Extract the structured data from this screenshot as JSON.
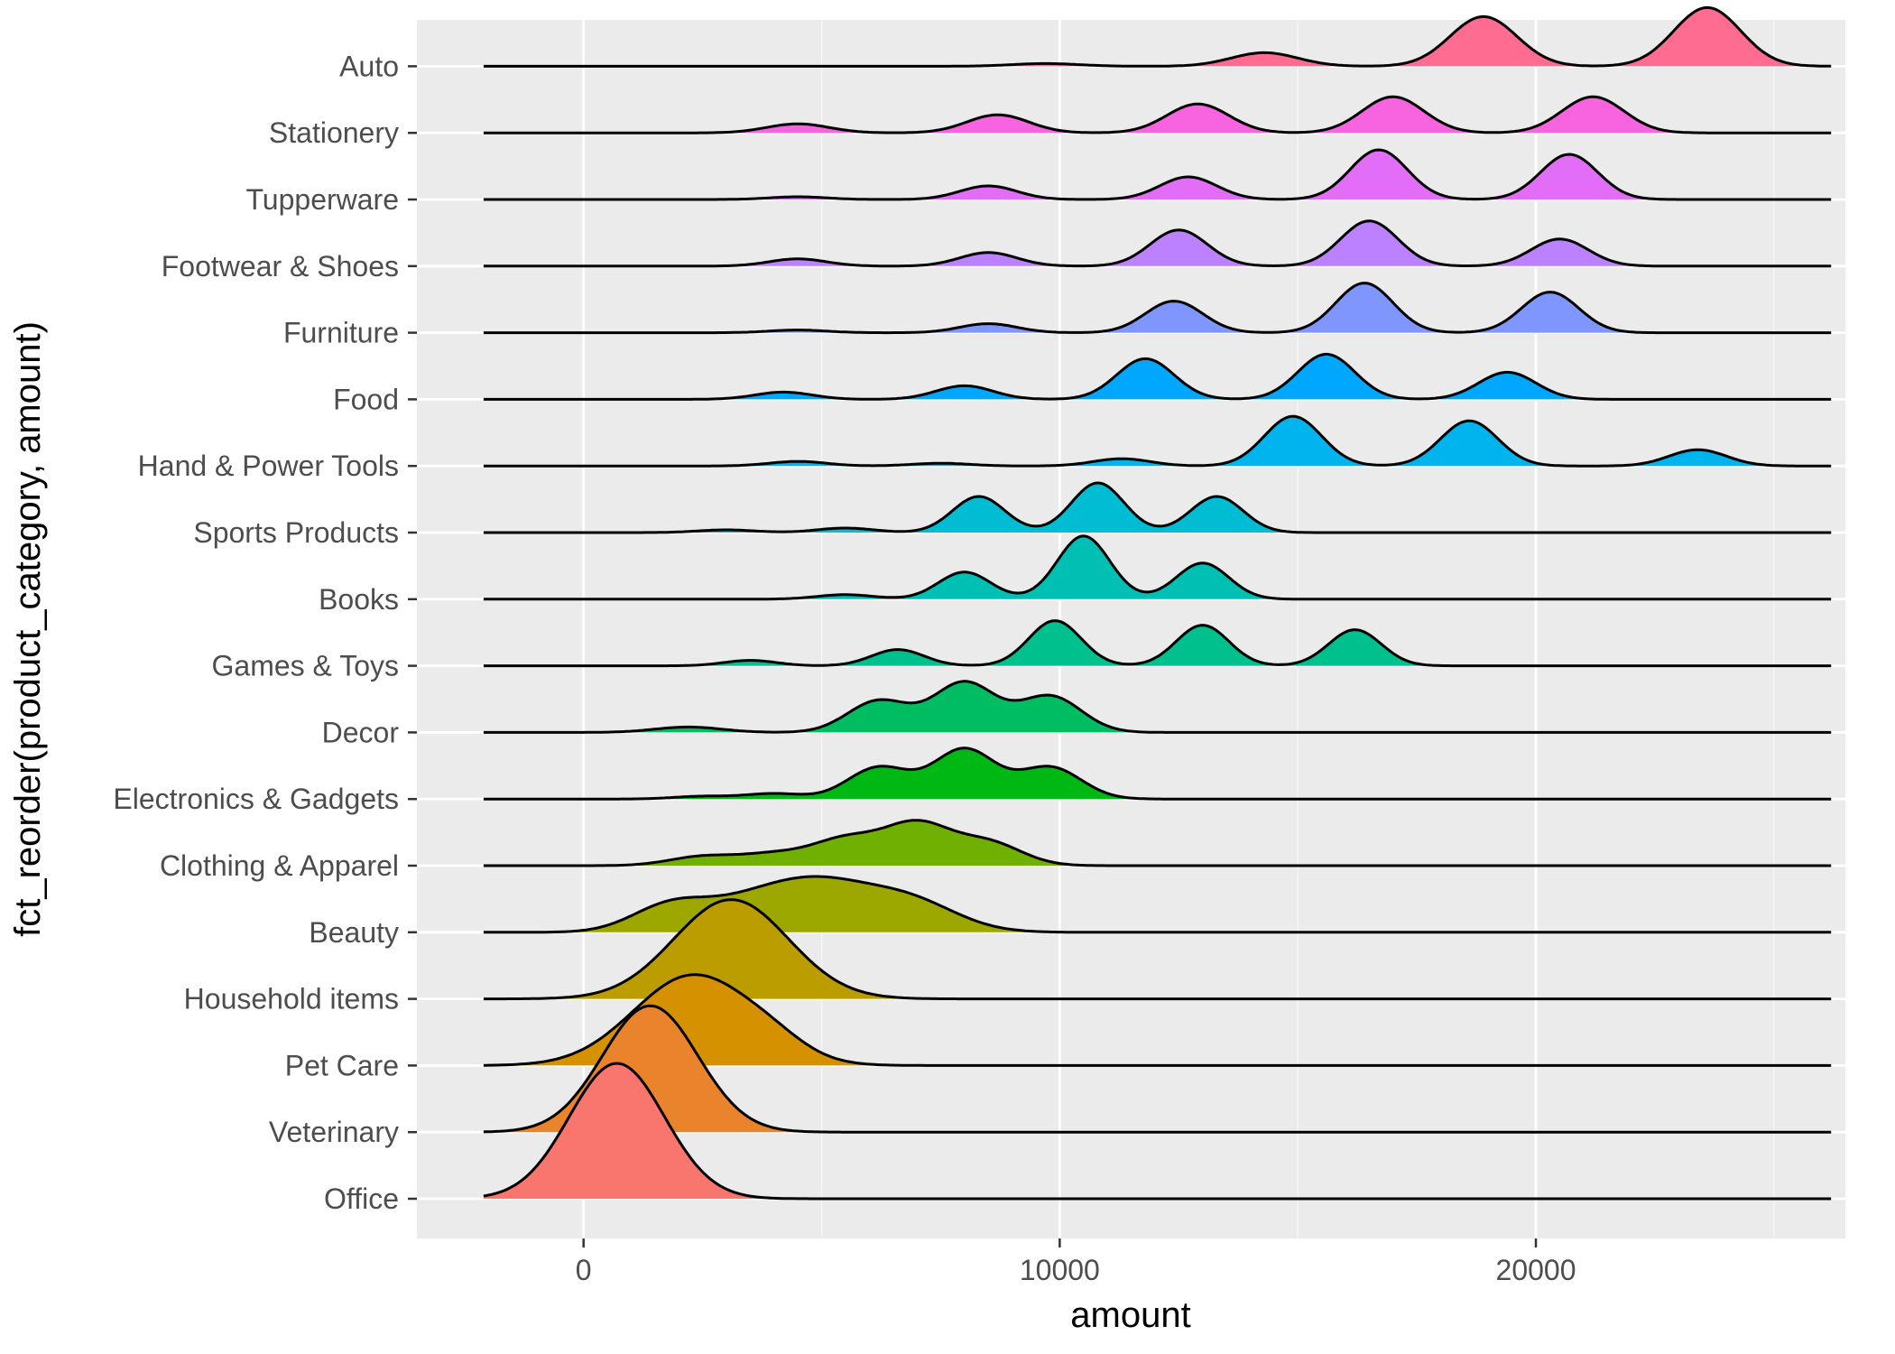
{
  "chart_data": {
    "type": "ridgeline",
    "xlabel": "amount",
    "ylabel": "fct_reorder(product_category, amount)",
    "xlim": [
      -3500,
      26500
    ],
    "x_ticks": [
      0,
      10000,
      20000
    ],
    "x_tick_labels": [
      "0",
      "10000",
      "20000"
    ],
    "density_range": [
      -2100,
      26200
    ],
    "grid": true,
    "legend": "none",
    "categories": [
      {
        "name": "Office",
        "color": "#F8766D",
        "peaks": [
          {
            "x": 700,
            "h": 1.5,
            "s": 1000
          }
        ]
      },
      {
        "name": "Veterinary",
        "color": "#E9842C",
        "peaks": [
          {
            "x": 1400,
            "h": 1.4,
            "s": 1000
          }
        ]
      },
      {
        "name": "Pet Care",
        "color": "#D69100",
        "peaks": [
          {
            "x": 2300,
            "h": 1.0,
            "s": 1250
          },
          {
            "x": 4000,
            "h": 0.12,
            "s": 700
          }
        ]
      },
      {
        "name": "Household items",
        "color": "#BC9D00",
        "peaks": [
          {
            "x": 3100,
            "h": 1.1,
            "s": 1200
          }
        ]
      },
      {
        "name": "Beauty",
        "color": "#9CA700",
        "peaks": [
          {
            "x": 1800,
            "h": 0.28,
            "s": 800
          },
          {
            "x": 3500,
            "h": 0.3,
            "s": 1000
          },
          {
            "x": 5000,
            "h": 0.45,
            "s": 1000
          },
          {
            "x": 6800,
            "h": 0.35,
            "s": 1000
          }
        ]
      },
      {
        "name": "Clothing & Apparel",
        "color": "#6FB000",
        "peaks": [
          {
            "x": 2500,
            "h": 0.1,
            "s": 700
          },
          {
            "x": 4000,
            "h": 0.12,
            "s": 700
          },
          {
            "x": 5500,
            "h": 0.28,
            "s": 700
          },
          {
            "x": 7000,
            "h": 0.45,
            "s": 700
          },
          {
            "x": 8500,
            "h": 0.25,
            "s": 700
          }
        ]
      },
      {
        "name": "Electronics & Gadgets",
        "color": "#00B813",
        "peaks": [
          {
            "x": 2500,
            "h": 0.03,
            "s": 600
          },
          {
            "x": 4000,
            "h": 0.06,
            "s": 600
          },
          {
            "x": 6200,
            "h": 0.35,
            "s": 650
          },
          {
            "x": 8000,
            "h": 0.55,
            "s": 650
          },
          {
            "x": 9800,
            "h": 0.35,
            "s": 650
          }
        ]
      },
      {
        "name": "Decor",
        "color": "#00BD61",
        "peaks": [
          {
            "x": 2200,
            "h": 0.06,
            "s": 700
          },
          {
            "x": 6200,
            "h": 0.35,
            "s": 650
          },
          {
            "x": 8000,
            "h": 0.55,
            "s": 650
          },
          {
            "x": 9800,
            "h": 0.4,
            "s": 650
          }
        ]
      },
      {
        "name": "Games & Toys",
        "color": "#00C08E",
        "peaks": [
          {
            "x": 3500,
            "h": 0.06,
            "s": 550
          },
          {
            "x": 6600,
            "h": 0.18,
            "s": 550
          },
          {
            "x": 9900,
            "h": 0.5,
            "s": 550
          },
          {
            "x": 13000,
            "h": 0.45,
            "s": 550
          },
          {
            "x": 16200,
            "h": 0.4,
            "s": 550
          }
        ]
      },
      {
        "name": "Books",
        "color": "#00C0B4",
        "peaks": [
          {
            "x": 5500,
            "h": 0.05,
            "s": 600
          },
          {
            "x": 8000,
            "h": 0.3,
            "s": 550
          },
          {
            "x": 10500,
            "h": 0.7,
            "s": 550
          },
          {
            "x": 13000,
            "h": 0.4,
            "s": 550
          }
        ]
      },
      {
        "name": "Sports Products",
        "color": "#00BDD4",
        "peaks": [
          {
            "x": 3000,
            "h": 0.03,
            "s": 600
          },
          {
            "x": 5500,
            "h": 0.05,
            "s": 600
          },
          {
            "x": 8300,
            "h": 0.4,
            "s": 550
          },
          {
            "x": 10800,
            "h": 0.55,
            "s": 550
          },
          {
            "x": 13300,
            "h": 0.4,
            "s": 550
          }
        ]
      },
      {
        "name": "Hand & Power Tools",
        "color": "#00B5EE",
        "peaks": [
          {
            "x": 4500,
            "h": 0.05,
            "s": 600
          },
          {
            "x": 7500,
            "h": 0.03,
            "s": 600
          },
          {
            "x": 11300,
            "h": 0.08,
            "s": 600
          },
          {
            "x": 14900,
            "h": 0.55,
            "s": 600
          },
          {
            "x": 18600,
            "h": 0.5,
            "s": 600
          },
          {
            "x": 23400,
            "h": 0.18,
            "s": 600
          }
        ]
      },
      {
        "name": "Food",
        "color": "#00A7FF",
        "peaks": [
          {
            "x": 4200,
            "h": 0.08,
            "s": 600
          },
          {
            "x": 8000,
            "h": 0.15,
            "s": 600
          },
          {
            "x": 11800,
            "h": 0.45,
            "s": 600
          },
          {
            "x": 15600,
            "h": 0.5,
            "s": 600
          },
          {
            "x": 19400,
            "h": 0.3,
            "s": 600
          }
        ]
      },
      {
        "name": "Furniture",
        "color": "#7F96FF",
        "peaks": [
          {
            "x": 4500,
            "h": 0.03,
            "s": 600
          },
          {
            "x": 8500,
            "h": 0.1,
            "s": 600
          },
          {
            "x": 12400,
            "h": 0.35,
            "s": 600
          },
          {
            "x": 16400,
            "h": 0.55,
            "s": 600
          },
          {
            "x": 20300,
            "h": 0.45,
            "s": 600
          }
        ]
      },
      {
        "name": "Footwear & Shoes",
        "color": "#BC81FF",
        "peaks": [
          {
            "x": 4500,
            "h": 0.08,
            "s": 600
          },
          {
            "x": 8500,
            "h": 0.15,
            "s": 600
          },
          {
            "x": 12500,
            "h": 0.4,
            "s": 600
          },
          {
            "x": 16500,
            "h": 0.5,
            "s": 600
          },
          {
            "x": 20500,
            "h": 0.3,
            "s": 600
          }
        ]
      },
      {
        "name": "Tupperware",
        "color": "#E26EF7",
        "peaks": [
          {
            "x": 4500,
            "h": 0.03,
            "s": 600
          },
          {
            "x": 8500,
            "h": 0.15,
            "s": 600
          },
          {
            "x": 12700,
            "h": 0.25,
            "s": 600
          },
          {
            "x": 16700,
            "h": 0.55,
            "s": 600
          },
          {
            "x": 20700,
            "h": 0.5,
            "s": 600
          }
        ]
      },
      {
        "name": "Stationery",
        "color": "#F863DF",
        "peaks": [
          {
            "x": 4500,
            "h": 0.1,
            "s": 650
          },
          {
            "x": 8700,
            "h": 0.2,
            "s": 650
          },
          {
            "x": 12900,
            "h": 0.32,
            "s": 650
          },
          {
            "x": 17000,
            "h": 0.4,
            "s": 650
          },
          {
            "x": 21200,
            "h": 0.4,
            "s": 650
          }
        ]
      },
      {
        "name": "Auto",
        "color": "#FF6C91",
        "peaks": [
          {
            "x": 9700,
            "h": 0.03,
            "s": 700
          },
          {
            "x": 14300,
            "h": 0.15,
            "s": 700
          },
          {
            "x": 18900,
            "h": 0.55,
            "s": 700
          },
          {
            "x": 23600,
            "h": 0.65,
            "s": 700
          }
        ]
      }
    ]
  }
}
